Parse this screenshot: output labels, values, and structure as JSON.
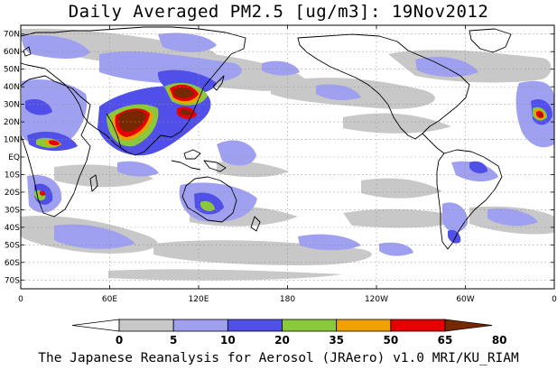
{
  "title": "Daily Averaged PM2.5 [ug/m3]: 19Nov2012",
  "footer": "The Japanese Reanalysis for Aerosol (JRAero) v1.0 MRI/KU_RIAM",
  "map": {
    "lon_range": [
      0,
      360
    ],
    "lat_range": [
      -75,
      75
    ],
    "lat_ticks": [
      {
        "lat": 70,
        "label": "70N"
      },
      {
        "lat": 60,
        "label": "60N"
      },
      {
        "lat": 50,
        "label": "50N"
      },
      {
        "lat": 40,
        "label": "40N"
      },
      {
        "lat": 30,
        "label": "30N"
      },
      {
        "lat": 20,
        "label": "20N"
      },
      {
        "lat": 10,
        "label": "10N"
      },
      {
        "lat": 0,
        "label": "EQ"
      },
      {
        "lat": -10,
        "label": "10S"
      },
      {
        "lat": -20,
        "label": "20S"
      },
      {
        "lat": -30,
        "label": "30S"
      },
      {
        "lat": -40,
        "label": "40S"
      },
      {
        "lat": -50,
        "label": "50S"
      },
      {
        "lat": -60,
        "label": "60S"
      },
      {
        "lat": -70,
        "label": "70S"
      }
    ],
    "lon_ticks": [
      {
        "lon": 0,
        "label": "0"
      },
      {
        "lon": 60,
        "label": "60E"
      },
      {
        "lon": 120,
        "label": "120E"
      },
      {
        "lon": 180,
        "label": "180"
      },
      {
        "lon": 240,
        "label": "120W"
      },
      {
        "lon": 300,
        "label": "60W"
      },
      {
        "lon": 360,
        "label": "0"
      }
    ]
  },
  "colorbar": {
    "levels": [
      "0",
      "5",
      "10",
      "20",
      "35",
      "50",
      "65",
      "80"
    ],
    "colors": [
      "#ffffff",
      "#c8c8c8",
      "#a0a0f0",
      "#5050e8",
      "#8cc83c",
      "#f0a000",
      "#e60000",
      "#782800"
    ]
  }
}
